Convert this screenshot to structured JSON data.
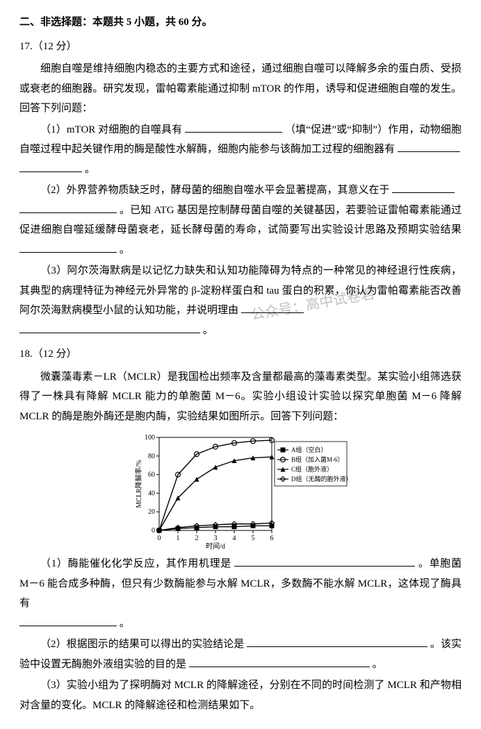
{
  "header": "二、非选择题：本题共 5 小题，共 60 分。",
  "q17": {
    "num": "17.（12 分）",
    "intro": "细胞自噬是维持细胞内稳态的主要方式和途径，通过细胞自噬可以降解多余的蛋白质、受损或衰老的细胞器。研究发现，雷帕霉素能通过抑制 mTOR 的作用，诱导和促进细胞自噬的发生。回答下列问题：",
    "p1a": "（1）mTOR 对细胞的自噬具有",
    "p1b": "（填“促进”或“抑制”）作用，动物细胞自噬过程中起关键作用的酶是酸性水解酶，细胞内能参与该酶加工过程的细胞器有",
    "p1c": "。",
    "p2a": "（2）外界营养物质缺乏时，酵母菌的细胞自噬水平会显著提高，其意义在于",
    "p2b": "。已知 ATG 基因是控制酵母菌自噬的关键基因，若要验证雷帕霉素能通过促进细胞自噬延缓酵母菌衰老，延长酵母菌的寿命，试简要写出实验设计思路及预期实验结果",
    "p2c": "。",
    "p3a": "（3）阿尔茨海默病是以记忆力缺失和认知功能障碍为特点的一种常见的神经退行性疾病，其典型的病理特征为神经元外异常的 β-淀粉样蛋白和 tau 蛋白的积累，你认为雷帕霉素能否改善阿尔茨海默病模型小鼠的认知功能，并说明理由",
    "p3b": "。"
  },
  "q18": {
    "num": "18.（12 分）",
    "intro": "微囊藻毒素－LR（MCLR）是我国检出频率及含量都最高的藻毒素类型。某实验小组筛选获得了一株具有降解 MCLR 能力的单胞菌 M－6。实验小组设计实验以探究单胞菌 M－6 降解 MCLR 的酶是胞外酶还是胞内酶，实验结果如图所示。回答下列问题：",
    "p1a": "（1）酶能催化化学反应，其作用机理是",
    "p1b": "。单胞菌 M－6 能合成多种酶，但只有少数酶能参与水解 MCLR，多数酶不能水解 MCLR，这体现了酶具有",
    "p1c": "。",
    "p2a": "（2）根据图示的结果可以得出的实验结论是",
    "p2b": "。该实验中设置无酶胞外液组实验的目的是",
    "p2c": "。",
    "p3a": "（3）实验小组为了探明酶对 MCLR 的降解途径，分别在不同的时间检测了 MCLR 和产物相对含量的变化。MCLR 的降解途径和检测结果如下。"
  },
  "watermark": "公众号：高中试卷君",
  "chart": {
    "title": "",
    "xlabel": "时间/d",
    "ylabel": "MCLR降解率/%",
    "xlim": [
      0,
      6
    ],
    "ylim": [
      0,
      100
    ],
    "xticks": [
      0,
      1,
      2,
      3,
      4,
      5,
      6
    ],
    "yticks": [
      0,
      20,
      40,
      60,
      80,
      100
    ],
    "bg": "#ffffff",
    "axis_color": "#000000",
    "text_fontsize": 10,
    "legend_items": [
      {
        "label": "A组（空白）",
        "marker": "square",
        "color": "#000000"
      },
      {
        "label": "B组（加入菌M-6）",
        "marker": "circle",
        "color": "#000000"
      },
      {
        "label": "C组（胞外液）",
        "marker": "triangle",
        "color": "#000000"
      },
      {
        "label": "D组（无酶的胞外液）",
        "marker": "diamond",
        "color": "#000000"
      }
    ],
    "series": {
      "A": {
        "x": [
          0,
          1,
          2,
          3,
          4,
          5,
          6
        ],
        "y": [
          0,
          2,
          3,
          4,
          4,
          5,
          5
        ],
        "marker": "square",
        "color": "#000000"
      },
      "B": {
        "x": [
          0,
          1,
          2,
          3,
          4,
          5,
          6
        ],
        "y": [
          0,
          60,
          82,
          90,
          94,
          96,
          97
        ],
        "marker": "circle",
        "color": "#000000"
      },
      "C": {
        "x": [
          0,
          1,
          2,
          3,
          4,
          5,
          6
        ],
        "y": [
          0,
          35,
          55,
          68,
          75,
          78,
          79
        ],
        "marker": "triangle",
        "color": "#000000"
      },
      "D": {
        "x": [
          0,
          1,
          2,
          3,
          4,
          5,
          6
        ],
        "y": [
          0,
          3,
          5,
          6,
          7,
          7,
          8
        ],
        "marker": "diamond",
        "color": "#000000"
      }
    }
  }
}
